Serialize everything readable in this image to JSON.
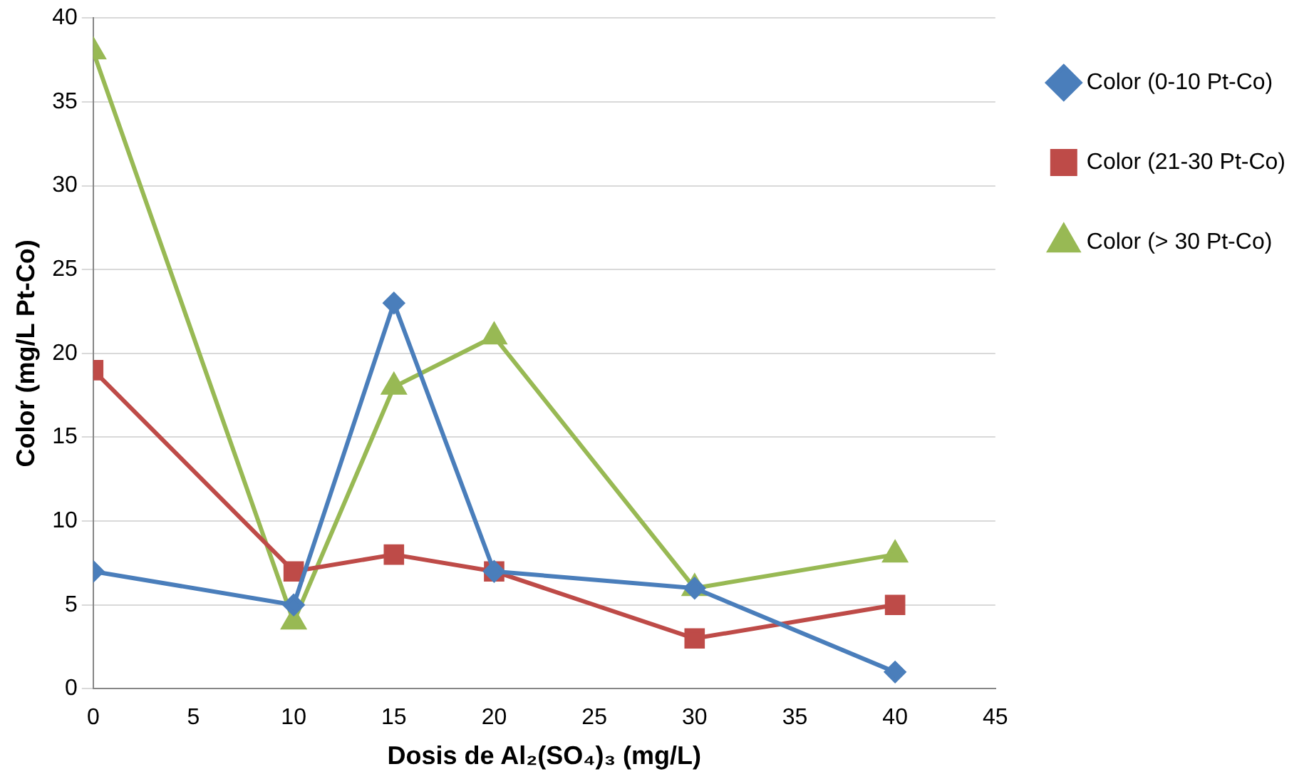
{
  "chart_data": {
    "type": "line",
    "xlabel": "Dosis de Al₂(SO₄)₃ (mg/L)",
    "ylabel": "Color (mg/L Pt-Co)",
    "x": [
      0,
      10,
      15,
      20,
      30,
      40
    ],
    "series": [
      {
        "name": "Color (0-10 Pt-Co)",
        "color": "#4a7ebb",
        "marker": "diamond",
        "values": [
          7,
          5,
          23,
          7,
          6,
          1
        ]
      },
      {
        "name": "Color (21-30 Pt-Co)",
        "color": "#be4b48",
        "marker": "square",
        "values": [
          19,
          7,
          8,
          7,
          3,
          5
        ]
      },
      {
        "name": "Color (> 30 Pt-Co)",
        "color": "#98b954",
        "marker": "triangle",
        "values": [
          38,
          4,
          18,
          21,
          6,
          8
        ]
      }
    ],
    "xlim": [
      0,
      45
    ],
    "xticks": [
      0,
      5,
      10,
      15,
      20,
      25,
      30,
      35,
      40,
      45
    ],
    "ylim": [
      0,
      40
    ],
    "yticks": [
      0,
      5,
      10,
      15,
      20,
      25,
      30,
      35,
      40
    ],
    "grid": "y",
    "legend": "right",
    "line_style": "solid"
  }
}
